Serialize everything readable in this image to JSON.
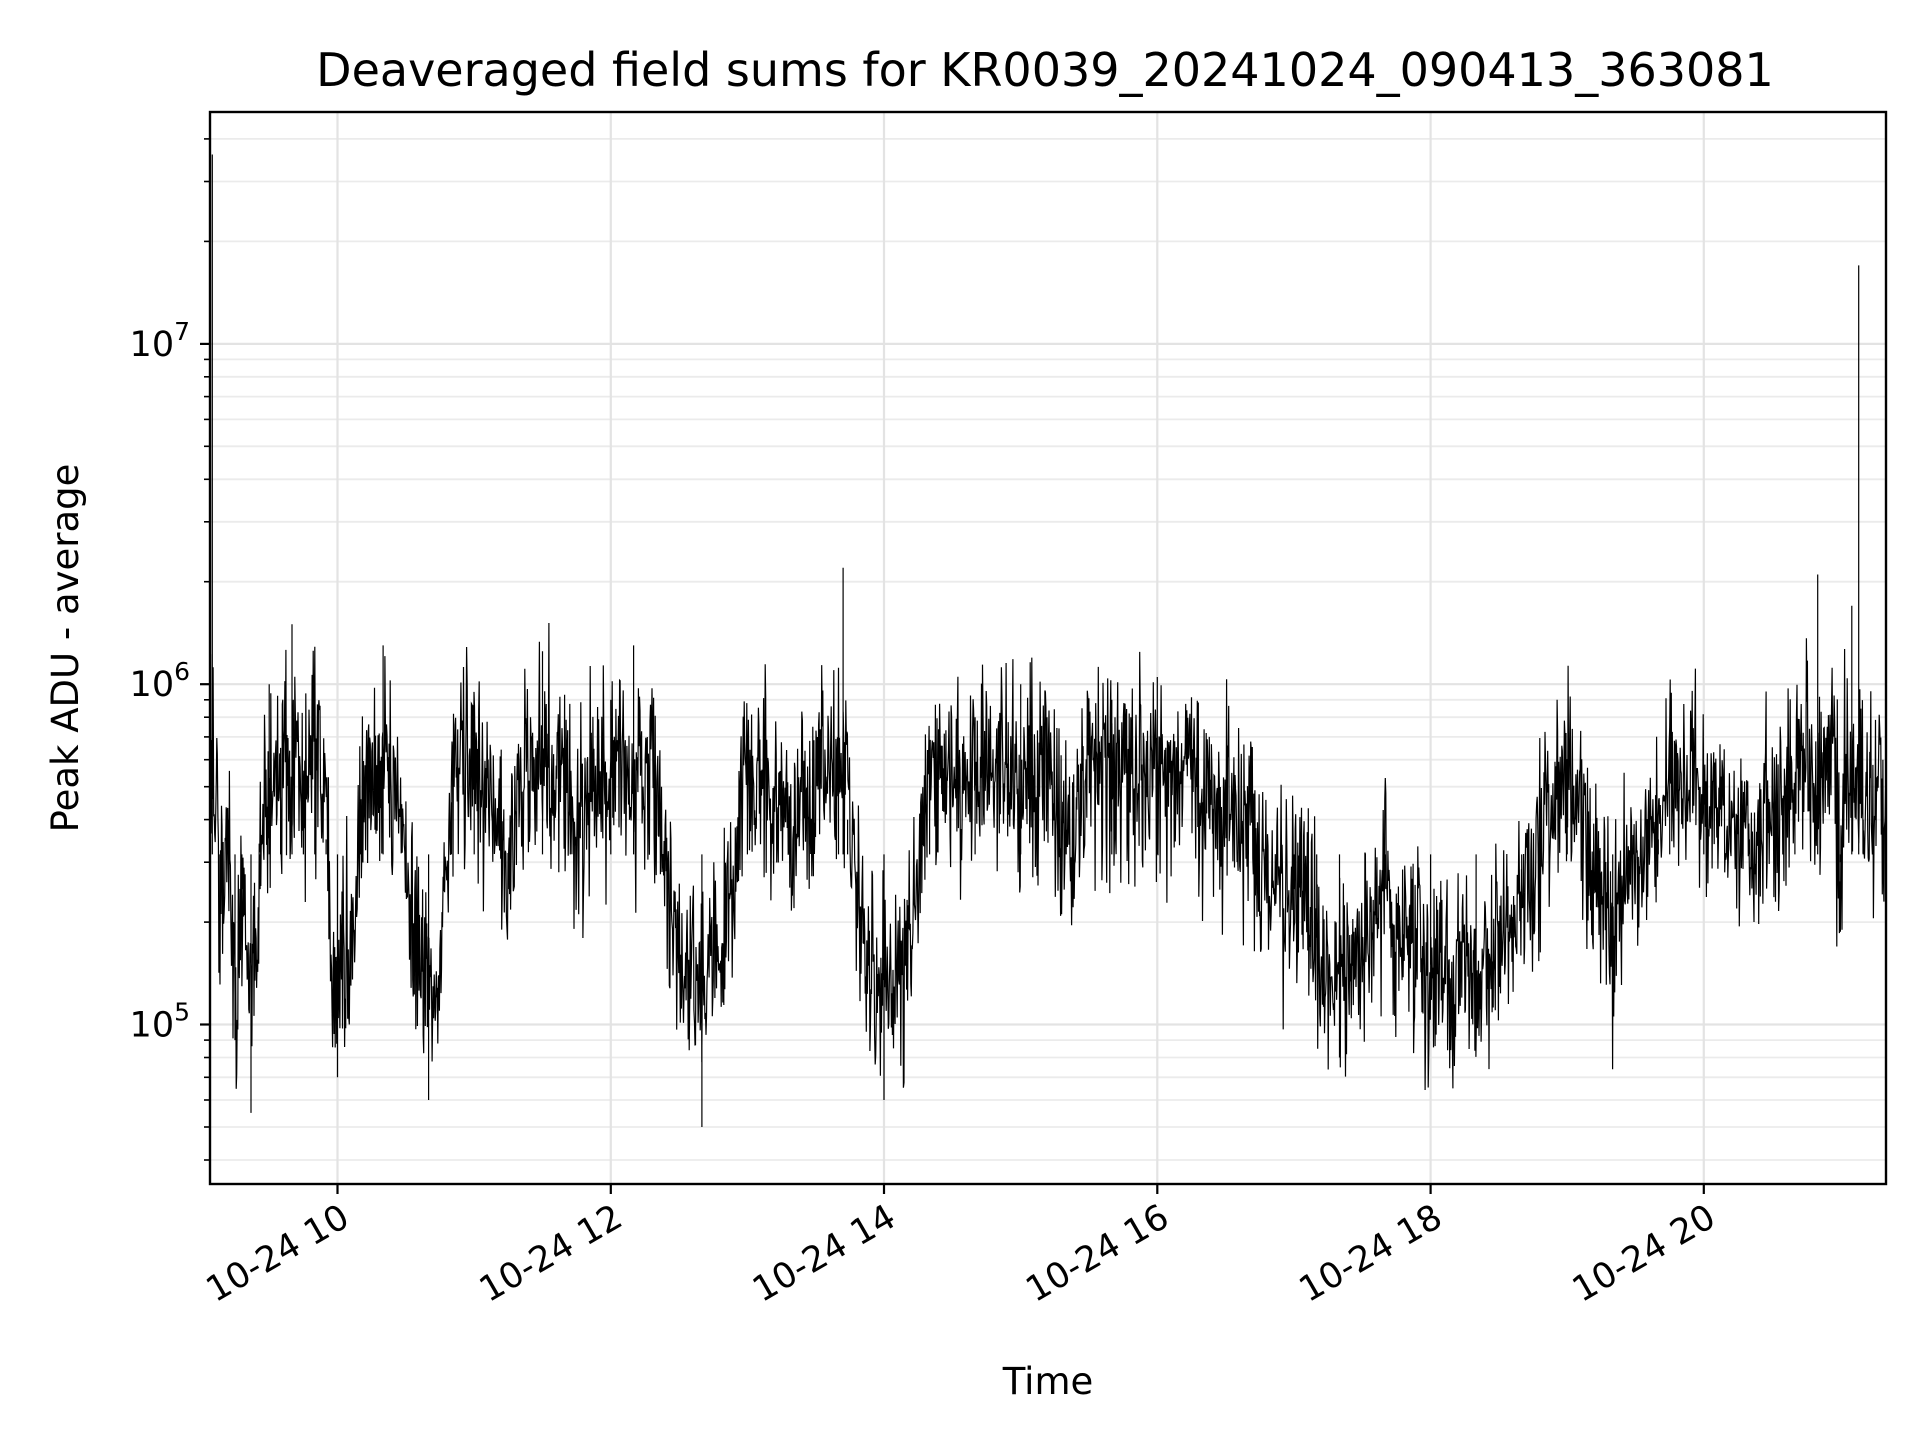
{
  "chart_data": {
    "type": "line",
    "title": "Deaveraged field sums for KR0039_20241024_090413_363081",
    "xlabel": "Time",
    "ylabel": "Peak ADU - average",
    "x_range": [
      "2024-10-24 09:04",
      "2024-10-24 21:20"
    ],
    "ylim": [
      34000,
      48000000
    ],
    "yscale": "log",
    "grid": true,
    "line_color": "#000000",
    "x_ticks": [
      {
        "x": "2024-10-24 10:00",
        "label": "10-24 10"
      },
      {
        "x": "2024-10-24 12:00",
        "label": "10-24 12"
      },
      {
        "x": "2024-10-24 14:00",
        "label": "10-24 14"
      },
      {
        "x": "2024-10-24 16:00",
        "label": "10-24 16"
      },
      {
        "x": "2024-10-24 18:00",
        "label": "10-24 18"
      },
      {
        "x": "2024-10-24 20:00",
        "label": "10-24 20"
      }
    ],
    "y_ticks": [
      {
        "value": 100000,
        "base": "10",
        "exp": "5"
      },
      {
        "value": 1000000,
        "base": "10",
        "exp": "6"
      },
      {
        "value": 10000000,
        "base": "10",
        "exp": "7"
      }
    ],
    "series": [
      {
        "points": [
          [
            "2024-10-24 09:04",
            250000
          ],
          [
            "2024-10-24 09:05",
            36000000
          ],
          [
            "2024-10-24 09:08",
            180000
          ],
          [
            "2024-10-24 09:12",
            400000
          ],
          [
            "2024-10-24 09:15",
            90000
          ],
          [
            "2024-10-24 09:18",
            250000
          ],
          [
            "2024-10-24 09:22",
            55000
          ],
          [
            "2024-10-24 09:26",
            250000
          ],
          [
            "2024-10-24 09:30",
            1000000
          ],
          [
            "2024-10-24 09:35",
            650000
          ],
          [
            "2024-10-24 09:40",
            1500000
          ],
          [
            "2024-10-24 09:45",
            500000
          ],
          [
            "2024-10-24 09:50",
            800000
          ],
          [
            "2024-10-24 09:55",
            350000
          ],
          [
            "2024-10-24 10:00",
            70000
          ],
          [
            "2024-10-24 10:10",
            400000
          ],
          [
            "2024-10-24 10:20",
            1300000
          ],
          [
            "2024-10-24 10:30",
            300000
          ],
          [
            "2024-10-24 10:40",
            60000
          ],
          [
            "2024-10-24 10:50",
            450000
          ],
          [
            "2024-10-24 11:00",
            800000
          ],
          [
            "2024-10-24 11:15",
            250000
          ],
          [
            "2024-10-24 11:30",
            1250000
          ],
          [
            "2024-10-24 11:45",
            350000
          ],
          [
            "2024-10-24 12:00",
            900000
          ],
          [
            "2024-10-24 12:10",
            1300000
          ],
          [
            "2024-10-24 12:20",
            450000
          ],
          [
            "2024-10-24 12:40",
            50000
          ],
          [
            "2024-10-24 13:00",
            600000
          ],
          [
            "2024-10-24 13:20",
            350000
          ],
          [
            "2024-10-24 13:40",
            700000
          ],
          [
            "2024-10-24 13:42",
            2200000
          ],
          [
            "2024-10-24 13:44",
            400000
          ],
          [
            "2024-10-24 14:00",
            60000
          ],
          [
            "2024-10-24 14:20",
            500000
          ],
          [
            "2024-10-24 14:40",
            800000
          ],
          [
            "2024-10-24 15:00",
            1000000
          ],
          [
            "2024-10-24 15:20",
            350000
          ],
          [
            "2024-10-24 15:40",
            900000
          ],
          [
            "2024-10-24 16:00",
            1050000
          ],
          [
            "2024-10-24 16:20",
            450000
          ],
          [
            "2024-10-24 16:40",
            350000
          ],
          [
            "2024-10-24 17:00",
            250000
          ],
          [
            "2024-10-24 17:10",
            180000
          ],
          [
            "2024-10-24 17:20",
            80000
          ],
          [
            "2024-10-24 17:40",
            250000
          ],
          [
            "2024-10-24 18:00",
            150000
          ],
          [
            "2024-10-24 18:20",
            100000
          ],
          [
            "2024-10-24 18:40",
            250000
          ],
          [
            "2024-10-24 19:00",
            500000
          ],
          [
            "2024-10-24 19:20",
            200000
          ],
          [
            "2024-10-24 19:40",
            350000
          ],
          [
            "2024-10-24 19:45",
            700000
          ],
          [
            "2024-10-24 20:00",
            450000
          ],
          [
            "2024-10-24 20:20",
            350000
          ],
          [
            "2024-10-24 20:40",
            500000
          ],
          [
            "2024-10-24 20:50",
            2100000
          ],
          [
            "2024-10-24 21:00",
            300000
          ],
          [
            "2024-10-24 21:05",
            1700000
          ],
          [
            "2024-10-24 21:08",
            17000000
          ],
          [
            "2024-10-24 21:10",
            400000
          ],
          [
            "2024-10-24 21:20",
            450000
          ]
        ]
      }
    ]
  }
}
